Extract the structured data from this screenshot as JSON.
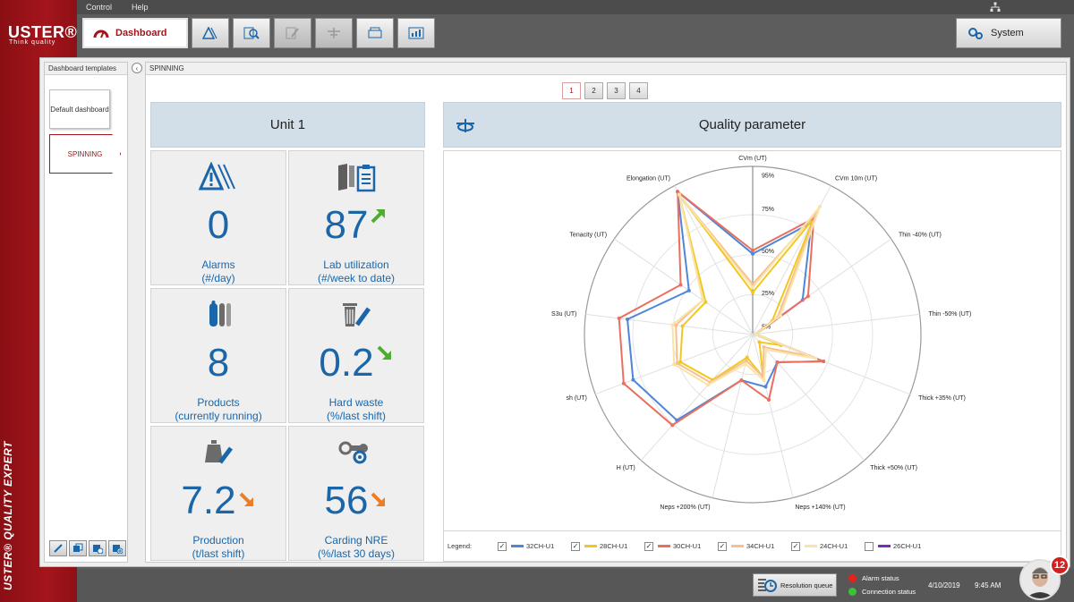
{
  "brand": {
    "logo": "USTER®",
    "tagline": "Think quality",
    "vertical": "USTER® QUALITY EXPERT"
  },
  "menu": {
    "items": [
      "Control",
      "Help"
    ]
  },
  "toolbar": {
    "dashboard_label": "Dashboard",
    "system_label": "System"
  },
  "templates": {
    "header": "Dashboard templates",
    "items": [
      "Default dashboard",
      "SPINNING"
    ]
  },
  "content": {
    "header": "SPINNING",
    "pages": [
      "1",
      "2",
      "3",
      "4"
    ]
  },
  "unit": {
    "title": "Unit  1",
    "tiles": [
      {
        "value": "0",
        "label1": "Alarms",
        "label2": "(#/day)",
        "trend": "none"
      },
      {
        "value": "87",
        "label1": "Lab utilization",
        "label2": "(#/week to date)",
        "trend": "up-green"
      },
      {
        "value": "8",
        "label1": "Products",
        "label2": "(currently running)",
        "trend": "none"
      },
      {
        "value": "0.2",
        "label1": "Hard waste",
        "label2": "(%/last shift)",
        "trend": "down-green"
      },
      {
        "value": "7.2",
        "label1": "Production",
        "label2": "(t/last shift)",
        "trend": "down-orange"
      },
      {
        "value": "56",
        "label1": "Carding NRE",
        "label2": "(%/last 30 days)",
        "trend": "down-orange"
      }
    ]
  },
  "quality": {
    "title": "Quality parameter",
    "legend_title": "Legend:"
  },
  "chart_data": {
    "type": "radar",
    "axes": [
      "CVm (UT)",
      "CVm 10m (UT)",
      "Thin -40% (UT)",
      "Thin -50% (UT)",
      "Thick +35% (UT)",
      "Thick +50% (UT)",
      "Neps +140% (UT)",
      "Neps +200% (UT)",
      "H (UT)",
      "sh (UT)",
      "S3u (UT)",
      "Tenacity (UT)",
      "Elongation (UT)"
    ],
    "rings": [
      "5%",
      "25%",
      "50%",
      "75%",
      "95%"
    ],
    "series": [
      {
        "name": "32CH-U1",
        "checked": true,
        "color": "#4f86d8",
        "values": [
          48,
          75,
          36,
          2,
          45,
          22,
          32,
          28,
          68,
          76,
          75,
          46,
          96
        ]
      },
      {
        "name": "28CH-U1",
        "checked": true,
        "color": "#f2c81c",
        "values": [
          25,
          78,
          14,
          2,
          18,
          6,
          26,
          14,
          36,
          46,
          42,
          34,
          94
        ]
      },
      {
        "name": "30CH-U1",
        "checked": true,
        "color": "#ea6f5e",
        "values": [
          50,
          78,
          40,
          2,
          45,
          22,
          40,
          28,
          72,
          82,
          80,
          52,
          96
        ]
      },
      {
        "name": "34CH-U1",
        "checked": true,
        "color": "#f6c08f",
        "values": [
          30,
          82,
          18,
          2,
          36,
          10,
          26,
          16,
          38,
          48,
          46,
          36,
          94
        ]
      },
      {
        "name": "24CH-U1",
        "checked": true,
        "color": "#f9e3a8",
        "values": [
          28,
          86,
          20,
          2,
          40,
          12,
          28,
          18,
          40,
          50,
          48,
          36,
          94
        ]
      },
      {
        "name": "26CH-U1",
        "checked": false,
        "color": "#7b2bb5",
        "values": []
      }
    ]
  },
  "status": {
    "resolution_label": "Resolution queue",
    "alarm_label": "Alarm status",
    "alarm_color": "#e2231a",
    "connection_label": "Connection status",
    "connection_color": "#39c23a",
    "date": "4/10/2019",
    "time": "9:45 AM",
    "notification_count": "12"
  }
}
